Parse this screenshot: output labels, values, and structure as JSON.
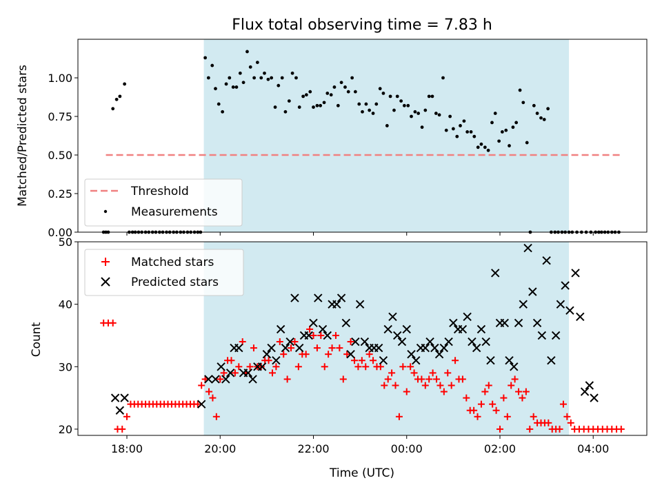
{
  "chart_data": [
    {
      "type": "scatter",
      "title": "Flux total observing time = 7.83 h",
      "ylabel": "Matched/Predicted stars",
      "xlabel": "",
      "xunit": "hours since 2024-01-01 00:00 UTC (tick labels wrap at 24h)",
      "xlim": [
        16.95,
        29.15
      ],
      "ylim": [
        0,
        1.25
      ],
      "yticks": [
        0.0,
        0.25,
        0.5,
        0.75,
        1.0
      ],
      "ytick_labels": [
        "0.00",
        "0.25",
        "0.50",
        "0.75",
        "1.00"
      ],
      "shaded_region": [
        19.65,
        27.48
      ],
      "shaded_color": "#add8e6",
      "series": [
        {
          "name": "Threshold",
          "kind": "dashed-line",
          "color": "#f08080",
          "x": [
            17.55,
            28.6
          ],
          "y": [
            0.5,
            0.5
          ]
        },
        {
          "name": "Measurements",
          "kind": "points",
          "color": "#000000",
          "x": [
            17.5,
            17.55,
            17.6,
            17.7,
            17.78,
            17.85,
            17.95,
            18.05,
            18.12,
            18.18,
            18.25,
            18.32,
            18.4,
            18.47,
            18.55,
            18.62,
            18.7,
            18.77,
            18.85,
            18.92,
            19.0,
            19.07,
            19.15,
            19.22,
            19.3,
            19.37,
            19.45,
            19.52,
            19.58,
            19.68,
            19.75,
            19.83,
            19.9,
            19.97,
            20.05,
            20.13,
            20.2,
            20.28,
            20.35,
            20.43,
            20.5,
            20.58,
            20.65,
            20.73,
            20.8,
            20.88,
            20.95,
            21.03,
            21.1,
            21.18,
            21.25,
            21.33,
            21.4,
            21.48,
            21.55,
            21.63,
            21.7,
            21.78,
            21.85,
            21.93,
            22.0,
            22.08,
            22.15,
            22.23,
            22.3,
            22.38,
            22.45,
            22.53,
            22.6,
            22.68,
            22.75,
            22.83,
            22.9,
            22.98,
            23.05,
            23.13,
            23.2,
            23.28,
            23.35,
            23.43,
            23.5,
            23.58,
            23.65,
            23.73,
            23.8,
            23.88,
            23.95,
            24.03,
            24.1,
            24.18,
            24.25,
            24.33,
            24.4,
            24.48,
            24.55,
            24.63,
            24.7,
            24.78,
            24.85,
            24.93,
            25.0,
            25.08,
            25.15,
            25.23,
            25.3,
            25.38,
            25.45,
            25.53,
            25.6,
            25.68,
            25.75,
            25.83,
            25.9,
            25.98,
            26.05,
            26.13,
            26.2,
            26.28,
            26.35,
            26.43,
            26.5,
            26.58,
            26.65,
            26.73,
            26.8,
            26.88,
            26.95,
            27.03,
            27.1,
            27.18,
            27.25,
            27.33,
            27.4,
            27.48,
            27.55,
            27.65,
            27.75,
            27.85,
            27.95,
            28.05,
            28.12,
            28.18,
            28.25,
            28.32,
            28.4,
            28.47,
            28.55
          ],
          "y": [
            0.0,
            0.0,
            0.0,
            0.8,
            0.86,
            0.88,
            0.96,
            0.0,
            0.0,
            0.0,
            0.0,
            0.0,
            0.0,
            0.0,
            0.0,
            0.0,
            0.0,
            0.0,
            0.0,
            0.0,
            0.0,
            0.0,
            0.0,
            0.0,
            0.0,
            0.0,
            0.0,
            0.0,
            0.0,
            1.13,
            1.0,
            1.08,
            0.93,
            0.83,
            0.78,
            0.96,
            1.0,
            0.94,
            0.94,
            1.03,
            0.97,
            1.17,
            1.07,
            1.0,
            1.1,
            1.0,
            1.03,
            0.99,
            1.0,
            0.81,
            0.95,
            1.0,
            0.78,
            0.85,
            1.03,
            1.0,
            0.81,
            0.88,
            0.89,
            0.91,
            0.81,
            0.82,
            0.82,
            0.84,
            0.9,
            0.89,
            0.94,
            0.82,
            0.97,
            0.94,
            0.91,
            1.0,
            0.91,
            0.83,
            0.78,
            0.83,
            0.79,
            0.77,
            0.83,
            0.93,
            0.9,
            0.69,
            0.88,
            0.79,
            0.88,
            0.85,
            0.82,
            0.82,
            0.75,
            0.78,
            0.77,
            0.68,
            0.79,
            0.88,
            0.88,
            0.77,
            0.76,
            1.0,
            0.66,
            0.75,
            0.67,
            0.62,
            0.69,
            0.72,
            0.65,
            0.65,
            0.62,
            0.55,
            0.57,
            0.55,
            0.53,
            0.71,
            0.77,
            0.59,
            0.65,
            0.66,
            0.56,
            0.68,
            0.71,
            0.92,
            0.84,
            0.58,
            0.0,
            0.82,
            0.77,
            0.74,
            0.73,
            0.8,
            0.0,
            0.0,
            0.0,
            0.0,
            0.0,
            0.0,
            0.0,
            0.0,
            0.0,
            0.0,
            0.0,
            0.0,
            0.0,
            0.0,
            0.0,
            0.0,
            0.0,
            0.0,
            0.0
          ]
        }
      ],
      "legend": "lower-left"
    },
    {
      "type": "scatter",
      "title": "",
      "xlabel": "Time (UTC)",
      "ylabel": "Count",
      "xlim": [
        16.95,
        29.15
      ],
      "ylim": [
        19,
        50
      ],
      "yticks": [
        20,
        30,
        40,
        50
      ],
      "ytick_labels": [
        "20",
        "30",
        "40",
        "50"
      ],
      "xticks": [
        18,
        20,
        22,
        24,
        26,
        28
      ],
      "xtick_labels": [
        "18:00",
        "20:00",
        "22:00",
        "00:00",
        "02:00",
        "04:00"
      ],
      "shaded_region": [
        19.65,
        27.48
      ],
      "shaded_color": "#add8e6",
      "series": [
        {
          "name": "Matched stars",
          "marker": "+",
          "color": "#ff0000",
          "x": [
            17.5,
            17.6,
            17.7,
            17.8,
            17.9,
            18.0,
            18.08,
            18.16,
            18.24,
            18.32,
            18.4,
            18.48,
            18.56,
            18.64,
            18.72,
            18.8,
            18.88,
            18.96,
            19.04,
            19.12,
            19.2,
            19.28,
            19.36,
            19.44,
            19.52,
            19.6,
            19.68,
            19.76,
            19.84,
            19.92,
            20.0,
            20.08,
            20.16,
            20.24,
            20.32,
            20.4,
            20.48,
            20.56,
            20.64,
            20.72,
            20.8,
            20.88,
            20.96,
            21.04,
            21.12,
            21.2,
            21.28,
            21.36,
            21.44,
            21.52,
            21.6,
            21.68,
            21.76,
            21.84,
            21.92,
            22.0,
            22.08,
            22.16,
            22.24,
            22.32,
            22.4,
            22.48,
            22.56,
            22.64,
            22.72,
            22.8,
            22.88,
            22.96,
            23.04,
            23.12,
            23.2,
            23.28,
            23.36,
            23.44,
            23.52,
            23.6,
            23.68,
            23.76,
            23.84,
            23.92,
            24.0,
            24.08,
            24.16,
            24.24,
            24.32,
            24.4,
            24.48,
            24.56,
            24.64,
            24.72,
            24.8,
            24.88,
            24.96,
            25.04,
            25.12,
            25.2,
            25.28,
            25.36,
            25.44,
            25.52,
            25.6,
            25.68,
            25.76,
            25.84,
            25.92,
            26.0,
            26.08,
            26.16,
            26.24,
            26.32,
            26.4,
            26.48,
            26.56,
            26.64,
            26.72,
            26.8,
            26.88,
            26.96,
            27.04,
            27.12,
            27.2,
            27.28,
            27.36,
            27.44,
            27.52,
            27.6,
            27.7,
            27.8,
            27.9,
            28.0,
            28.1,
            28.2,
            28.3,
            28.4,
            28.5,
            28.6
          ],
          "y": [
            37,
            37,
            37,
            20,
            20,
            22,
            24,
            24,
            24,
            24,
            24,
            24,
            24,
            24,
            24,
            24,
            24,
            24,
            24,
            24,
            24,
            24,
            24,
            24,
            24,
            27,
            28,
            26,
            25,
            22,
            28,
            29,
            31,
            31,
            29,
            30,
            34,
            29,
            30,
            33,
            30,
            30,
            31,
            31,
            29,
            30,
            34,
            32,
            28,
            33,
            34,
            30,
            32,
            32,
            36,
            35,
            33,
            35,
            30,
            32,
            33,
            35,
            33,
            28,
            32,
            34,
            31,
            30,
            31,
            30,
            32,
            31,
            30,
            30,
            27,
            28,
            29,
            27,
            22,
            30,
            26,
            30,
            29,
            28,
            28,
            27,
            28,
            29,
            28,
            27,
            26,
            29,
            27,
            31,
            28,
            28,
            25,
            23,
            23,
            22,
            24,
            26,
            27,
            24,
            23,
            20,
            25,
            22,
            27,
            28,
            26,
            25,
            26,
            20,
            22,
            21,
            21,
            21,
            21,
            20,
            20,
            20,
            24,
            22,
            21,
            20,
            20,
            20,
            20,
            20,
            20,
            20,
            20,
            20,
            20,
            20
          ],
          "note": ""
        },
        {
          "name": "Predicted stars",
          "marker": "x",
          "color": "#000000",
          "x": [
            17.75,
            17.85,
            17.95,
            19.6,
            19.75,
            19.9,
            20.02,
            20.12,
            20.22,
            20.3,
            20.4,
            20.5,
            20.6,
            20.7,
            20.8,
            20.9,
            21.0,
            21.1,
            21.2,
            21.3,
            21.4,
            21.5,
            21.6,
            21.7,
            21.8,
            21.9,
            22.0,
            22.1,
            22.2,
            22.3,
            22.4,
            22.5,
            22.6,
            22.7,
            22.8,
            22.9,
            23.0,
            23.1,
            23.2,
            23.3,
            23.4,
            23.5,
            23.6,
            23.7,
            23.8,
            23.9,
            24.0,
            24.1,
            24.2,
            24.3,
            24.4,
            24.5,
            24.6,
            24.7,
            24.8,
            24.9,
            25.0,
            25.1,
            25.2,
            25.3,
            25.4,
            25.5,
            25.6,
            25.7,
            25.8,
            25.9,
            26.0,
            26.1,
            26.2,
            26.3,
            26.4,
            26.5,
            26.6,
            26.7,
            26.8,
            26.9,
            27.0,
            27.1,
            27.2,
            27.3,
            27.4,
            27.5,
            27.62,
            27.72,
            27.82,
            27.92,
            28.02
          ],
          "y": [
            25,
            23,
            25,
            24,
            28,
            28,
            30,
            28,
            29,
            33,
            33,
            29,
            29,
            28,
            30,
            30,
            32,
            33,
            31,
            36,
            33,
            34,
            41,
            33,
            35,
            35,
            37,
            41,
            36,
            35,
            40,
            40,
            41,
            37,
            32,
            34,
            40,
            34,
            33,
            33,
            33,
            31,
            36,
            38,
            35,
            34,
            36,
            32,
            31,
            33,
            33,
            34,
            33,
            32,
            33,
            34,
            37,
            36,
            36,
            38,
            34,
            33,
            36,
            34,
            31,
            45,
            37,
            37,
            31,
            30,
            37,
            40,
            49,
            42,
            37,
            35,
            47,
            31,
            35,
            40,
            43,
            39,
            45,
            38,
            26,
            27,
            25
          ]
        }
      ],
      "legend": "upper-left"
    }
  ]
}
